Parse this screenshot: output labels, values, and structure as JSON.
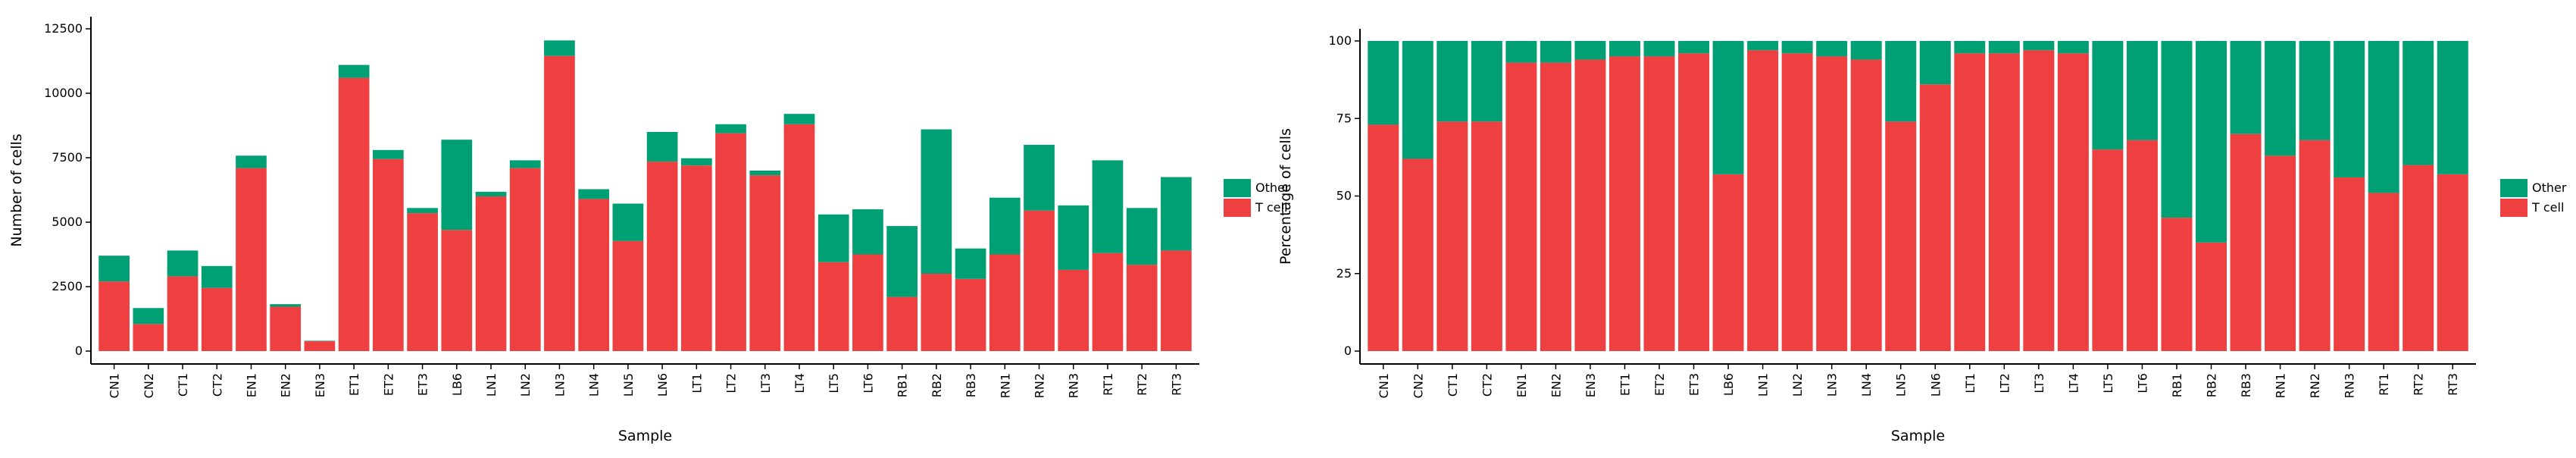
{
  "chart_data": [
    {
      "type": "bar",
      "stacked": true,
      "title": "",
      "xlabel": "Sample",
      "ylabel": "Number of cells",
      "ylim": [
        0,
        12500
      ],
      "yticks": [
        0,
        2500,
        5000,
        7500,
        10000,
        12500
      ],
      "grid": false,
      "legend_position": "right",
      "categories": [
        "CN1",
        "CN2",
        "CT1",
        "CT2",
        "EN1",
        "EN2",
        "EN3",
        "ET1",
        "ET2",
        "ET3",
        "LB6",
        "LN1",
        "LN2",
        "LN3",
        "LN4",
        "LN5",
        "LN6",
        "LT1",
        "LT2",
        "LT3",
        "LT4",
        "LT5",
        "LT6",
        "RB1",
        "RB2",
        "RB3",
        "RN1",
        "RN2",
        "RN3",
        "RT1",
        "RT2",
        "RT3"
      ],
      "series": [
        {
          "name": "T cell",
          "color": "#ee4040",
          "values": [
            2700,
            1050,
            2900,
            2450,
            7100,
            1720,
            380,
            10600,
            7450,
            5350,
            4700,
            6000,
            7100,
            11450,
            5900,
            4270,
            7350,
            7200,
            8450,
            6820,
            8800,
            3450,
            3750,
            2100,
            3000,
            2800,
            3750,
            5450,
            3150,
            3800,
            3350,
            3900
          ]
        },
        {
          "name": "Other",
          "color": "#00a074",
          "values": [
            1000,
            620,
            1000,
            850,
            480,
            100,
            20,
            500,
            350,
            200,
            3500,
            180,
            300,
            600,
            380,
            1450,
            1150,
            280,
            350,
            180,
            400,
            1850,
            1750,
            2750,
            5600,
            1180,
            2200,
            2550,
            2500,
            3600,
            2200,
            2850
          ]
        }
      ],
      "legend": [
        "Other",
        "T cell"
      ]
    },
    {
      "type": "bar",
      "stacked": true,
      "title": "",
      "xlabel": "Sample",
      "ylabel": "Percentage of cells",
      "ylim": [
        0,
        100
      ],
      "yticks": [
        0,
        25,
        50,
        75,
        100
      ],
      "grid": false,
      "legend_position": "right",
      "categories": [
        "CN1",
        "CN2",
        "CT1",
        "CT2",
        "EN1",
        "EN2",
        "EN3",
        "ET1",
        "ET2",
        "ET3",
        "LB6",
        "LN1",
        "LN2",
        "LN3",
        "LN4",
        "LN5",
        "LN6",
        "LT1",
        "LT2",
        "LT3",
        "LT4",
        "LT5",
        "LT6",
        "RB1",
        "RB2",
        "RB3",
        "RN1",
        "RN2",
        "RN3",
        "RT1",
        "RT2",
        "RT3"
      ],
      "series": [
        {
          "name": "T cell",
          "color": "#ee4040",
          "values": [
            73,
            62,
            74,
            74,
            93,
            93,
            94,
            95,
            95,
            96,
            57,
            97,
            96,
            95,
            94,
            74,
            86,
            96,
            96,
            97,
            96,
            65,
            68,
            43,
            35,
            70,
            63,
            68,
            56,
            51,
            60,
            57
          ]
        },
        {
          "name": "Other",
          "color": "#00a074",
          "values": [
            27,
            38,
            26,
            26,
            7,
            7,
            6,
            5,
            5,
            4,
            43,
            3,
            4,
            5,
            6,
            26,
            14,
            4,
            4,
            3,
            4,
            35,
            32,
            57,
            65,
            30,
            37,
            32,
            44,
            49,
            40,
            43
          ]
        }
      ],
      "legend": [
        "Other",
        "T cell"
      ]
    }
  ]
}
